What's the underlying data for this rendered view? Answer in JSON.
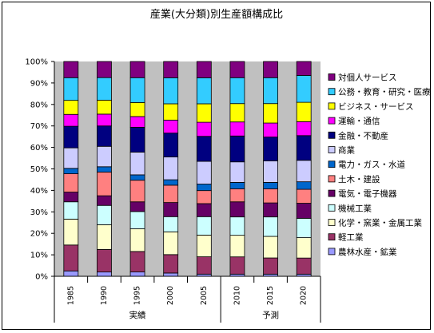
{
  "chart_data": {
    "type": "bar",
    "stacked": "percent",
    "title": "産業(大分類)別生産額構成比",
    "xlabel": "",
    "ylabel": "",
    "categories": [
      "1985",
      "1990",
      "1995",
      "2000",
      "2005",
      "2010",
      "2015",
      "2020"
    ],
    "group_labels": [
      {
        "label": "実績",
        "categories": [
          "1985",
          "1990",
          "1995",
          "2000",
          "2005"
        ]
      },
      {
        "label": "予測",
        "categories": [
          "2010",
          "2015",
          "2020"
        ]
      }
    ],
    "ylim": [
      0,
      100
    ],
    "yticks": [
      "0%",
      "10%",
      "20%",
      "30%",
      "40%",
      "50%",
      "60%",
      "70%",
      "80%",
      "90%",
      "100%"
    ],
    "grid": false,
    "plot_background": "#c0c0c0",
    "legend_position": "right",
    "series": [
      {
        "name": "農林水産・鉱業",
        "color": "#9999ff",
        "values": [
          2.5,
          2,
          2,
          1.5,
          1,
          1,
          1,
          1
        ]
      },
      {
        "name": "軽工業",
        "color": "#993366",
        "values": [
          12,
          10.5,
          9.5,
          8.5,
          8,
          8,
          7.5,
          7.5
        ]
      },
      {
        "name": "化学・窯業・金属工業",
        "color": "#ffffcc",
        "values": [
          12,
          11.5,
          10.5,
          10.5,
          10,
          10,
          10,
          9.5
        ]
      },
      {
        "name": "機械工業",
        "color": "#ccffff",
        "values": [
          8,
          9,
          8,
          7,
          8.5,
          8.5,
          9,
          9
        ]
      },
      {
        "name": "電気・電子機器",
        "color": "#660066",
        "values": [
          4.5,
          4.5,
          4.5,
          6.5,
          6,
          7,
          6.5,
          7
        ]
      },
      {
        "name": "土木・建設",
        "color": "#ff8080",
        "values": [
          8.5,
          11,
          10,
          8,
          6,
          6,
          6.5,
          6.5
        ]
      },
      {
        "name": "電力・ガス・水道",
        "color": "#0066cc",
        "values": [
          2.5,
          2.5,
          2.5,
          2.5,
          3,
          3,
          3,
          3.5
        ]
      },
      {
        "name": "商業",
        "color": "#ccccff",
        "values": [
          9.5,
          9.5,
          10.5,
          10.5,
          10.5,
          9.5,
          10,
          10
        ]
      },
      {
        "name": "金融・不動産",
        "color": "#000080",
        "values": [
          10,
          9.5,
          11.5,
          11,
          11.5,
          12,
          11,
          11.5
        ]
      },
      {
        "name": "運輸・通信",
        "color": "#ff00ff",
        "values": [
          5.5,
          5.5,
          5,
          6,
          6.5,
          6.5,
          6.5,
          6.5
        ]
      },
      {
        "name": "ビジネス・サービス",
        "color": "#ffff00",
        "values": [
          6.5,
          6.5,
          6.5,
          7.5,
          8.5,
          8.5,
          9,
          9
        ]
      },
      {
        "name": "公務・教育・研究・医療",
        "color": "#33ccff",
        "values": [
          10.5,
          10.5,
          11.5,
          12,
          12,
          12,
          12,
          12.5
        ]
      },
      {
        "name": "対個人サービス",
        "color": "#800080",
        "values": [
          7.5,
          7.5,
          7.5,
          7.5,
          7.5,
          7.5,
          7.5,
          6.5
        ]
      }
    ]
  }
}
